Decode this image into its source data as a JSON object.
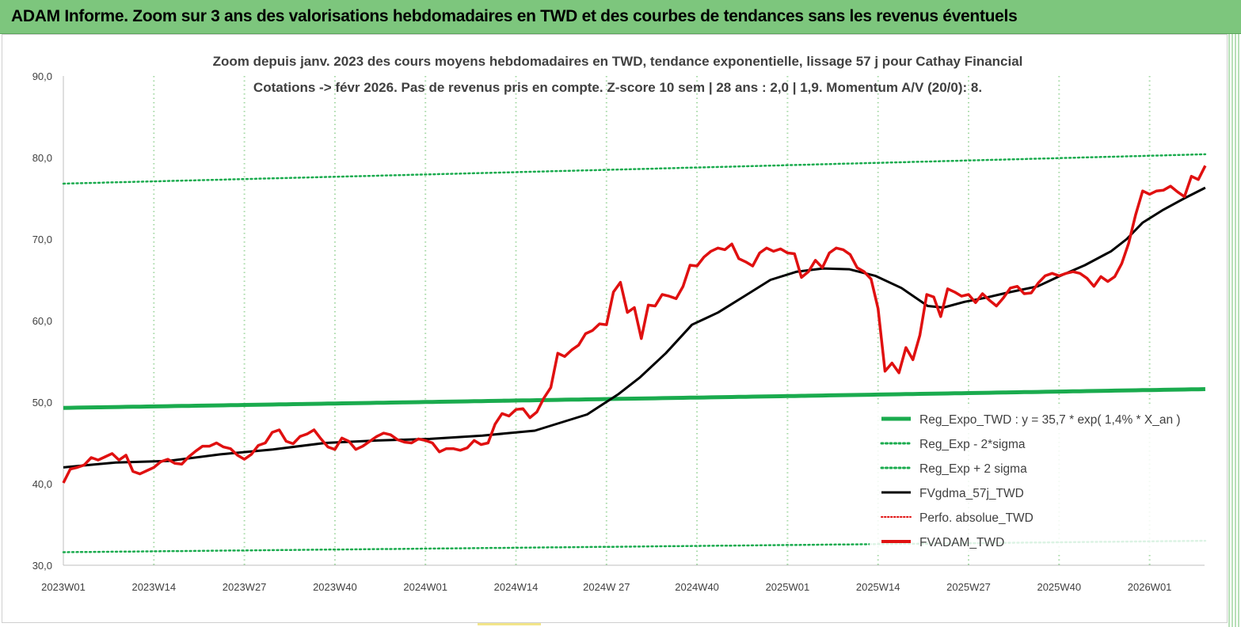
{
  "banner": {
    "title": "ADAM Informe. Zoom sur 3 ans des valorisations hebdomadaires en TWD et des courbes de tendances sans les revenus éventuels"
  },
  "chart_data": {
    "type": "line",
    "title_line1": "Zoom depuis janv. 2023 des cours moyens hebdomadaires en TWD, tendance exponentielle, lissage 57 j pour Cathay Financial",
    "title_line2": "Cotations -> févr 2026.  Pas de revenus pris en compte. Z-score 10 sem  | 28 ans : 2,0  | 1,9. Momentum A/V (20/0): 8.",
    "xlabel": "",
    "ylabel": "",
    "ylim": [
      30,
      90
    ],
    "y_ticks": [
      "30,0",
      "40,0",
      "50,0",
      "60,0",
      "70,0",
      "80,0",
      "90,0"
    ],
    "x_ticks": [
      "2023W01",
      "2023W14",
      "2023W27",
      "2023W40",
      "2024W01",
      "2024W14",
      "2024W 27",
      "2024W40",
      "2025W01",
      "2025W14",
      "2025W27",
      "2025W40",
      "2026W01"
    ],
    "n_weeks": 165,
    "grid": "vertical dotted",
    "legend_position": "bottom-right",
    "colors": {
      "reg_expo": "#1aab4e",
      "sigma": "#1aab4e",
      "fvgdma": "#000000",
      "perfo": "#e01010",
      "fvadam": "#e01010",
      "grid": "#a6d9a6"
    },
    "series": [
      {
        "key": "reg_expo",
        "name": "Reg_Expo_TWD : y = 35,7 * exp( 1,4% *  X_an )",
        "style": "solid-thick",
        "start": 49.3,
        "end": 51.6
      },
      {
        "key": "reg_minus",
        "name": "Reg_Exp - 2*sigma",
        "style": "dotted",
        "start": 31.6,
        "end": 33.0
      },
      {
        "key": "reg_plus",
        "name": "Reg_Exp + 2 sigma",
        "style": "dotted",
        "start": 76.8,
        "end": 80.4
      },
      {
        "key": "fvgdma",
        "name": "FVgdma_57j_TWD",
        "style": "solid",
        "points": [
          [
            0,
            42.0
          ],
          [
            10,
            42.6
          ],
          [
            20,
            42.8
          ],
          [
            30,
            43.6
          ],
          [
            40,
            44.2
          ],
          [
            50,
            45.0
          ],
          [
            60,
            45.3
          ],
          [
            70,
            45.5
          ],
          [
            80,
            45.9
          ],
          [
            90,
            46.5
          ],
          [
            100,
            48.5
          ],
          [
            106,
            51.0
          ],
          [
            110,
            53.0
          ],
          [
            115,
            56.0
          ],
          [
            120,
            59.5
          ],
          [
            125,
            61.0
          ],
          [
            130,
            63.0
          ],
          [
            135,
            65.0
          ],
          [
            140,
            66.0
          ],
          [
            145,
            66.4
          ],
          [
            150,
            66.3
          ],
          [
            155,
            65.5
          ],
          [
            160,
            64.0
          ],
          [
            165,
            61.8
          ],
          [
            168,
            61.6
          ],
          [
            172,
            62.3
          ],
          [
            176,
            62.8
          ],
          [
            180,
            63.4
          ],
          [
            186,
            64.2
          ],
          [
            190,
            65.4
          ],
          [
            195,
            66.8
          ],
          [
            200,
            68.5
          ],
          [
            203,
            70.0
          ],
          [
            206,
            72.0
          ],
          [
            210,
            73.6
          ],
          [
            214,
            75.0
          ],
          [
            218,
            76.3
          ]
        ]
      },
      {
        "key": "perfo",
        "name": "Perfo. absolue_TWD",
        "style": "dotted",
        "points": []
      },
      {
        "key": "fvadam",
        "name": "FVADAM_TWD",
        "style": "solid-thick",
        "points": [
          [
            0,
            40.1
          ],
          [
            1,
            41.8
          ],
          [
            2,
            42.0
          ],
          [
            3,
            42.3
          ],
          [
            4,
            43.2
          ],
          [
            5,
            42.9
          ],
          [
            6,
            43.3
          ],
          [
            7,
            43.7
          ],
          [
            8,
            42.9
          ],
          [
            9,
            43.5
          ],
          [
            10,
            41.5
          ],
          [
            11,
            41.2
          ],
          [
            12,
            41.6
          ],
          [
            13,
            42.0
          ],
          [
            14,
            42.7
          ],
          [
            15,
            43.0
          ],
          [
            16,
            42.5
          ],
          [
            17,
            42.4
          ],
          [
            18,
            43.3
          ],
          [
            19,
            44.0
          ],
          [
            20,
            44.6
          ],
          [
            21,
            44.6
          ],
          [
            22,
            45.0
          ],
          [
            23,
            44.5
          ],
          [
            24,
            44.3
          ],
          [
            25,
            43.5
          ],
          [
            26,
            43.0
          ],
          [
            27,
            43.6
          ],
          [
            28,
            44.7
          ],
          [
            29,
            45.0
          ],
          [
            30,
            46.3
          ],
          [
            31,
            46.6
          ],
          [
            32,
            45.2
          ],
          [
            33,
            44.9
          ],
          [
            34,
            45.8
          ],
          [
            35,
            46.1
          ],
          [
            36,
            46.6
          ],
          [
            37,
            45.5
          ],
          [
            38,
            44.5
          ],
          [
            39,
            44.2
          ],
          [
            40,
            45.6
          ],
          [
            41,
            45.2
          ],
          [
            42,
            44.2
          ],
          [
            43,
            44.6
          ],
          [
            44,
            45.2
          ],
          [
            45,
            45.8
          ],
          [
            46,
            46.2
          ],
          [
            47,
            46.0
          ],
          [
            48,
            45.4
          ],
          [
            49,
            45.1
          ],
          [
            50,
            45.0
          ],
          [
            51,
            45.5
          ],
          [
            52,
            45.3
          ],
          [
            53,
            45.0
          ],
          [
            54,
            43.9
          ],
          [
            55,
            44.3
          ],
          [
            56,
            44.3
          ],
          [
            57,
            44.1
          ],
          [
            58,
            44.4
          ],
          [
            59,
            45.3
          ],
          [
            60,
            44.8
          ],
          [
            61,
            45.0
          ],
          [
            62,
            47.3
          ],
          [
            63,
            48.6
          ],
          [
            64,
            48.3
          ],
          [
            65,
            49.1
          ],
          [
            66,
            49.2
          ],
          [
            67,
            48.1
          ],
          [
            68,
            48.8
          ],
          [
            69,
            50.5
          ],
          [
            70,
            51.8
          ],
          [
            71,
            56.0
          ],
          [
            72,
            55.6
          ],
          [
            73,
            56.4
          ],
          [
            74,
            57.0
          ],
          [
            75,
            58.4
          ],
          [
            76,
            58.8
          ],
          [
            77,
            59.6
          ],
          [
            78,
            59.5
          ],
          [
            79,
            63.5
          ],
          [
            80,
            64.7
          ],
          [
            81,
            61.0
          ],
          [
            82,
            61.6
          ],
          [
            83,
            57.8
          ],
          [
            84,
            61.9
          ],
          [
            85,
            61.8
          ],
          [
            86,
            63.2
          ],
          [
            87,
            63.0
          ],
          [
            88,
            62.7
          ],
          [
            89,
            64.2
          ],
          [
            90,
            66.8
          ],
          [
            91,
            66.7
          ],
          [
            92,
            67.8
          ],
          [
            93,
            68.5
          ],
          [
            94,
            68.9
          ],
          [
            95,
            68.7
          ],
          [
            96,
            69.4
          ],
          [
            97,
            67.6
          ],
          [
            98,
            67.2
          ],
          [
            99,
            66.7
          ],
          [
            100,
            68.3
          ],
          [
            101,
            68.9
          ],
          [
            102,
            68.5
          ],
          [
            103,
            68.8
          ],
          [
            104,
            68.3
          ],
          [
            105,
            68.2
          ],
          [
            106,
            65.3
          ],
          [
            107,
            66.0
          ],
          [
            108,
            67.4
          ],
          [
            109,
            66.5
          ],
          [
            110,
            68.3
          ],
          [
            111,
            68.9
          ],
          [
            112,
            68.7
          ],
          [
            113,
            68.1
          ],
          [
            114,
            66.5
          ],
          [
            115,
            66.0
          ],
          [
            116,
            65.1
          ],
          [
            117,
            61.5
          ],
          [
            118,
            53.8
          ],
          [
            119,
            54.8
          ],
          [
            120,
            53.6
          ],
          [
            121,
            56.7
          ],
          [
            122,
            55.2
          ],
          [
            123,
            58.2
          ],
          [
            124,
            63.2
          ],
          [
            125,
            62.9
          ],
          [
            126,
            60.5
          ],
          [
            127,
            63.9
          ],
          [
            128,
            63.5
          ],
          [
            129,
            63.0
          ],
          [
            130,
            63.2
          ],
          [
            131,
            62.2
          ],
          [
            132,
            63.3
          ],
          [
            133,
            62.5
          ],
          [
            134,
            61.8
          ],
          [
            135,
            62.8
          ],
          [
            136,
            64.0
          ],
          [
            137,
            64.2
          ],
          [
            138,
            63.3
          ],
          [
            139,
            63.4
          ],
          [
            140,
            64.6
          ],
          [
            141,
            65.5
          ],
          [
            142,
            65.8
          ],
          [
            143,
            65.5
          ],
          [
            144,
            65.8
          ],
          [
            145,
            66.0
          ],
          [
            146,
            65.8
          ],
          [
            147,
            65.2
          ],
          [
            148,
            64.2
          ],
          [
            149,
            65.4
          ],
          [
            150,
            64.8
          ],
          [
            151,
            65.4
          ],
          [
            152,
            67.0
          ],
          [
            153,
            69.5
          ],
          [
            154,
            73.0
          ],
          [
            155,
            75.9
          ],
          [
            156,
            75.5
          ],
          [
            157,
            75.9
          ],
          [
            158,
            76.0
          ],
          [
            159,
            76.5
          ],
          [
            160,
            75.8
          ],
          [
            161,
            75.2
          ],
          [
            162,
            77.7
          ],
          [
            163,
            77.3
          ],
          [
            164,
            79.0
          ]
        ]
      }
    ]
  }
}
